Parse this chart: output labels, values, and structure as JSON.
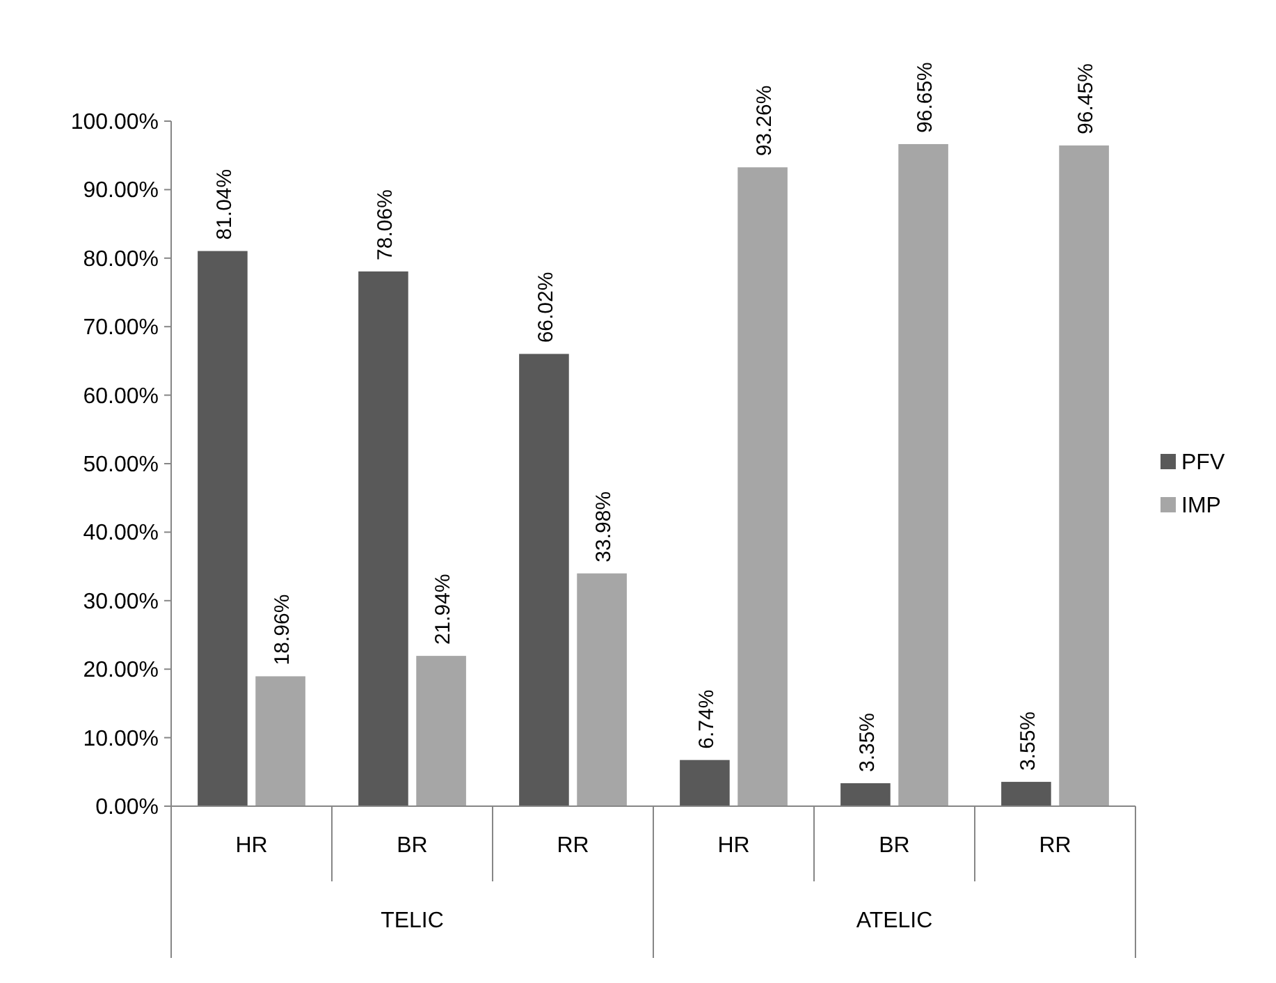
{
  "chart_data": {
    "type": "bar",
    "categories": [
      "HR",
      "BR",
      "RR",
      "HR",
      "BR",
      "RR"
    ],
    "series": [
      {
        "name": "PFV",
        "color": "#595959",
        "values": [
          81.04,
          78.06,
          66.02,
          6.74,
          3.35,
          3.55
        ],
        "value_labels": [
          "81.04%",
          "78.06%",
          "66.02%",
          "6.74%",
          "3.35%",
          "3.55%"
        ]
      },
      {
        "name": "IMP",
        "color": "#a6a6a6",
        "values": [
          18.96,
          21.94,
          33.98,
          93.26,
          96.65,
          96.45
        ],
        "value_labels": [
          "18.96%",
          "21.94%",
          "33.98%",
          "93.26%",
          "96.65%",
          "96.45%"
        ]
      }
    ],
    "ylim": [
      0,
      100
    ],
    "yticks": [
      {
        "value": 0,
        "label": "0.00%"
      },
      {
        "value": 10,
        "label": "10.00%"
      },
      {
        "value": 20,
        "label": "20.00%"
      },
      {
        "value": 30,
        "label": "30.00%"
      },
      {
        "value": 40,
        "label": "40.00%"
      },
      {
        "value": 50,
        "label": "50.00%"
      },
      {
        "value": 60,
        "label": "60.00%"
      },
      {
        "value": 70,
        "label": "70.00%"
      },
      {
        "value": 80,
        "label": "80.00%"
      },
      {
        "value": 90,
        "label": "90.00%"
      },
      {
        "value": 100,
        "label": "100.00%"
      }
    ],
    "annotations": [
      "TELIC",
      "ATELIC"
    ],
    "grid": false,
    "legend": "right"
  }
}
